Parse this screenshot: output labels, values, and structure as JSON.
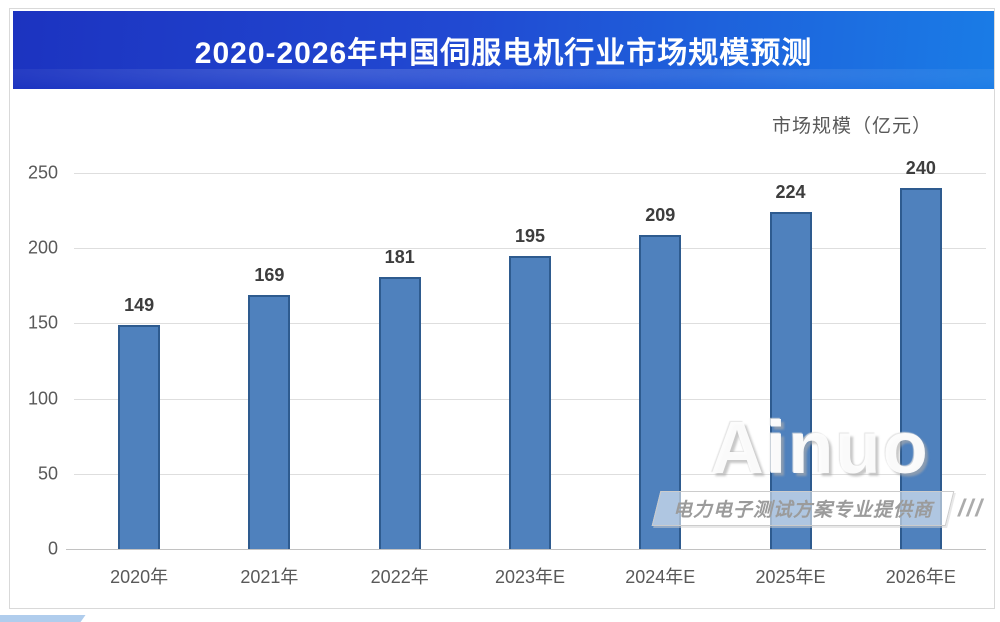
{
  "banner": {
    "title": "2020-2026年中国伺服电机行业市场规模预测"
  },
  "chart_data": {
    "type": "bar",
    "title": "2020-2026年中国伺服电机行业市场规模预测",
    "categories": [
      "2020年",
      "2021年",
      "2022年",
      "2023年E",
      "2024年E",
      "2025年E",
      "2026年E"
    ],
    "values": [
      149,
      169,
      181,
      195,
      209,
      224,
      240
    ],
    "xlabel": "",
    "ylabel": "市场规模（亿元）",
    "ylim": [
      0,
      250
    ],
    "yticks": [
      0,
      50,
      100,
      150,
      200,
      250
    ],
    "grid": true,
    "legend": "none",
    "bar_color": "#4F81BD",
    "bar_border_color": "#2E5B8F"
  },
  "unit_label": "市场规模（亿元）",
  "watermark": {
    "brand": "Ainuo",
    "slogan": "电力电子测试方案专业提供商",
    "slashes": "///"
  },
  "colors": {
    "banner_gradient_left": "#1c33c0",
    "banner_gradient_mid": "#2149d2",
    "banner_gradient_right": "#1a7ce6",
    "banner_text": "#ffffff",
    "grid_line": "#dedede",
    "axis_line": "#c2c2c2",
    "tick_text": "#595959",
    "value_text": "#3d3d3d",
    "card_border": "#d9d9d9"
  }
}
